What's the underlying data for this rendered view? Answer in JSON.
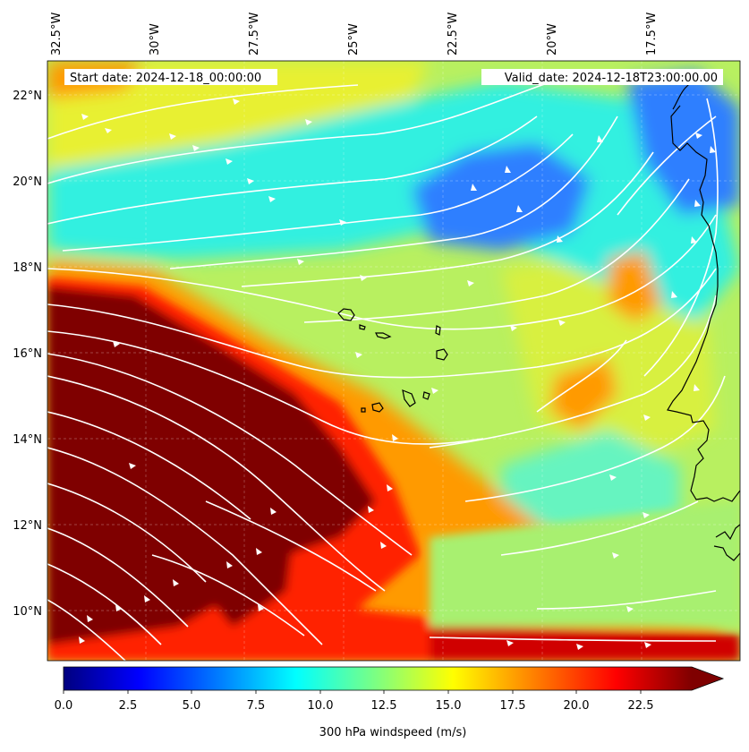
{
  "map": {
    "header": {
      "start_date": "Start date: 2024-12-18_00:00:00",
      "valid_date": "Valid_date: 2024-12-18T23:00:00.00"
    },
    "lon_ticks": [
      "32.5°W",
      "30°W",
      "27.5°W",
      "25°W",
      "22.5°W",
      "20°W",
      "17.5°W"
    ],
    "lat_ticks": [
      "22°N",
      "20°N",
      "18°N",
      "16°N",
      "14°N",
      "12°N",
      "10°N"
    ],
    "colorbar": {
      "label": "300 hPa windspeed (m/s)",
      "ticks": [
        "0.0",
        "2.5",
        "5.0",
        "7.5",
        "10.0",
        "12.5",
        "15.0",
        "17.5",
        "20.0",
        "22.5"
      ],
      "min": 0,
      "max": 25,
      "extend": "max",
      "colormap": [
        "#00007f",
        "#0000ff",
        "#007fff",
        "#00ffff",
        "#7fff7f",
        "#ffff00",
        "#ff7f00",
        "#ff0000",
        "#7f0000"
      ]
    },
    "field_colors": {
      "background": "#b8f060",
      "jet_core": "#7f0000",
      "jet_edge": "#ff2000",
      "jet_halo": "#ff9a00",
      "low_wind": "#2f7fff",
      "mid_wind": "#33f0e0",
      "coast": "#000000",
      "streamline": "#ffffff"
    }
  }
}
